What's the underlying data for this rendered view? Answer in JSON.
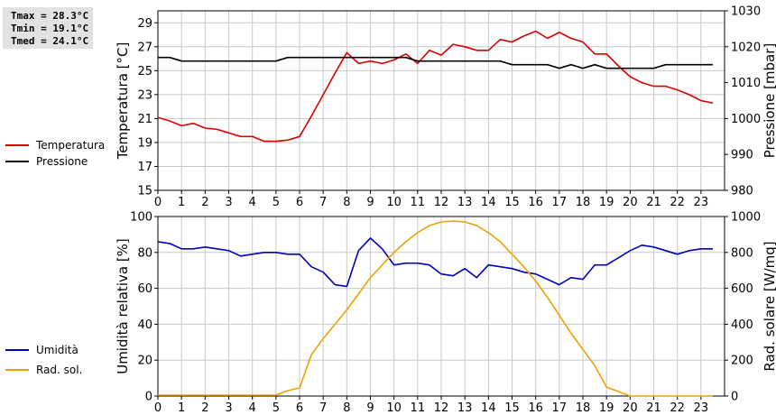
{
  "stats": {
    "tmax": "Tmax = 28.3°C",
    "tmin": "Tmin = 19.1°C",
    "tmed": "Tmed = 24.1°C"
  },
  "chart_data": [
    {
      "type": "line",
      "x_ticks": [
        "0",
        "1",
        "2",
        "3",
        "4",
        "5",
        "6",
        "7",
        "8",
        "9",
        "10",
        "11",
        "12",
        "13",
        "14",
        "15",
        "16",
        "17",
        "18",
        "19",
        "20",
        "21",
        "22",
        "23"
      ],
      "xlim": [
        0,
        24
      ],
      "grid": true,
      "legend_position": "left",
      "y_left": {
        "label": "Temperatura [°C]",
        "lim": [
          15,
          30
        ],
        "ticks": [
          15,
          17,
          19,
          21,
          23,
          25,
          27,
          29
        ]
      },
      "y_right": {
        "label": "Pressione [mbar]",
        "lim": [
          980,
          1030
        ],
        "ticks": [
          980,
          990,
          1000,
          1010,
          1020,
          1030
        ]
      },
      "series": [
        {
          "name": "Temperatura",
          "axis": "left",
          "color": "#dd0000",
          "x": [
            0,
            0.5,
            1,
            1.5,
            2,
            2.5,
            3,
            3.5,
            4,
            4.5,
            5,
            5.5,
            6,
            6.5,
            7,
            7.5,
            8,
            8.5,
            9,
            9.5,
            10,
            10.5,
            11,
            11.5,
            12,
            12.5,
            13,
            13.5,
            14,
            14.5,
            15,
            15.5,
            16,
            16.5,
            17,
            17.5,
            18,
            18.5,
            19,
            19.5,
            20,
            20.5,
            21,
            21.5,
            22,
            22.5,
            23,
            23.5
          ],
          "values": [
            21.1,
            20.8,
            20.4,
            20.6,
            20.2,
            20.1,
            19.8,
            19.5,
            19.5,
            19.1,
            19.1,
            19.2,
            19.5,
            21.2,
            23.0,
            24.8,
            26.5,
            25.6,
            25.8,
            25.6,
            25.9,
            26.4,
            25.6,
            26.7,
            26.3,
            27.2,
            27.0,
            26.7,
            26.7,
            27.6,
            27.4,
            27.9,
            28.3,
            27.7,
            28.2,
            27.7,
            27.4,
            26.4,
            26.4,
            25.4,
            24.5,
            24.0,
            23.7,
            23.7,
            23.4,
            23.0,
            22.5,
            22.3
          ]
        },
        {
          "name": "Pressione",
          "axis": "right",
          "color": "#000000",
          "x": [
            0,
            0.5,
            1,
            1.5,
            2,
            2.5,
            3,
            3.5,
            4,
            4.5,
            5,
            5.5,
            6,
            6.5,
            7,
            7.5,
            8,
            8.5,
            9,
            9.5,
            10,
            10.5,
            11,
            11.5,
            12,
            12.5,
            13,
            13.5,
            14,
            14.5,
            15,
            15.5,
            16,
            16.5,
            17,
            17.5,
            18,
            18.5,
            19,
            19.5,
            20,
            20.5,
            21,
            21.5,
            22,
            22.5,
            23,
            23.5
          ],
          "values": [
            1017,
            1017,
            1016,
            1016,
            1016,
            1016,
            1016,
            1016,
            1016,
            1016,
            1016,
            1017,
            1017,
            1017,
            1017,
            1017,
            1017,
            1017,
            1017,
            1017,
            1017,
            1017,
            1016,
            1016,
            1016,
            1016,
            1016,
            1016,
            1016,
            1016,
            1015,
            1015,
            1015,
            1015,
            1014,
            1015,
            1014,
            1015,
            1014,
            1014,
            1014,
            1014,
            1014,
            1015,
            1015,
            1015,
            1015,
            1015
          ]
        }
      ]
    },
    {
      "type": "line",
      "x_ticks": [
        "0",
        "1",
        "2",
        "3",
        "4",
        "5",
        "6",
        "7",
        "8",
        "9",
        "10",
        "11",
        "12",
        "13",
        "14",
        "15",
        "16",
        "17",
        "18",
        "19",
        "20",
        "21",
        "22",
        "23"
      ],
      "xlim": [
        0,
        24
      ],
      "grid": true,
      "legend_position": "left",
      "y_left": {
        "label": "Umidità relativa [%]",
        "lim": [
          0,
          100
        ],
        "ticks": [
          0,
          20,
          40,
          60,
          80,
          100
        ]
      },
      "y_right": {
        "label": "Rad. solare [W/mq]",
        "lim": [
          0,
          1000
        ],
        "ticks": [
          0,
          200,
          400,
          600,
          800,
          1000
        ]
      },
      "series": [
        {
          "name": "Umidità",
          "axis": "left",
          "color": "#0000bb",
          "x": [
            0,
            0.5,
            1,
            1.5,
            2,
            2.5,
            3,
            3.5,
            4,
            4.5,
            5,
            5.5,
            6,
            6.5,
            7,
            7.5,
            8,
            8.5,
            9,
            9.5,
            10,
            10.5,
            11,
            11.5,
            12,
            12.5,
            13,
            13.5,
            14,
            14.5,
            15,
            15.5,
            16,
            16.5,
            17,
            17.5,
            18,
            18.5,
            19,
            19.5,
            20,
            20.5,
            21,
            21.5,
            22,
            22.5,
            23,
            23.5
          ],
          "values": [
            86,
            85,
            82,
            82,
            83,
            82,
            81,
            78,
            79,
            80,
            80,
            79,
            79,
            72,
            69,
            62,
            61,
            81,
            88,
            82,
            73,
            74,
            74,
            73,
            68,
            67,
            71,
            66,
            73,
            72,
            71,
            69,
            68,
            65,
            62,
            66,
            65,
            73,
            73,
            77,
            81,
            84,
            83,
            81,
            79,
            81,
            82,
            82
          ]
        },
        {
          "name": "Rad. sol.",
          "axis": "right",
          "color": "#f0a000",
          "x": [
            0,
            0.5,
            1,
            1.5,
            2,
            2.5,
            3,
            3.5,
            4,
            4.5,
            5,
            5.5,
            6,
            6.5,
            7,
            7.5,
            8,
            8.5,
            9,
            9.5,
            10,
            10.5,
            11,
            11.5,
            12,
            12.5,
            13,
            13.5,
            14,
            14.5,
            15,
            15.5,
            16,
            16.5,
            17,
            17.5,
            18,
            18.5,
            19,
            19.5,
            20,
            20.5,
            21,
            21.5,
            22,
            22.5,
            23,
            23.5
          ],
          "values": [
            5,
            5,
            5,
            5,
            5,
            5,
            5,
            5,
            5,
            5,
            5,
            30,
            45,
            230,
            320,
            400,
            480,
            570,
            660,
            730,
            800,
            860,
            910,
            950,
            970,
            975,
            970,
            950,
            910,
            860,
            790,
            720,
            640,
            550,
            450,
            350,
            260,
            170,
            50,
            25,
            0,
            0,
            0,
            0,
            0,
            0,
            0,
            0
          ]
        }
      ]
    }
  ]
}
